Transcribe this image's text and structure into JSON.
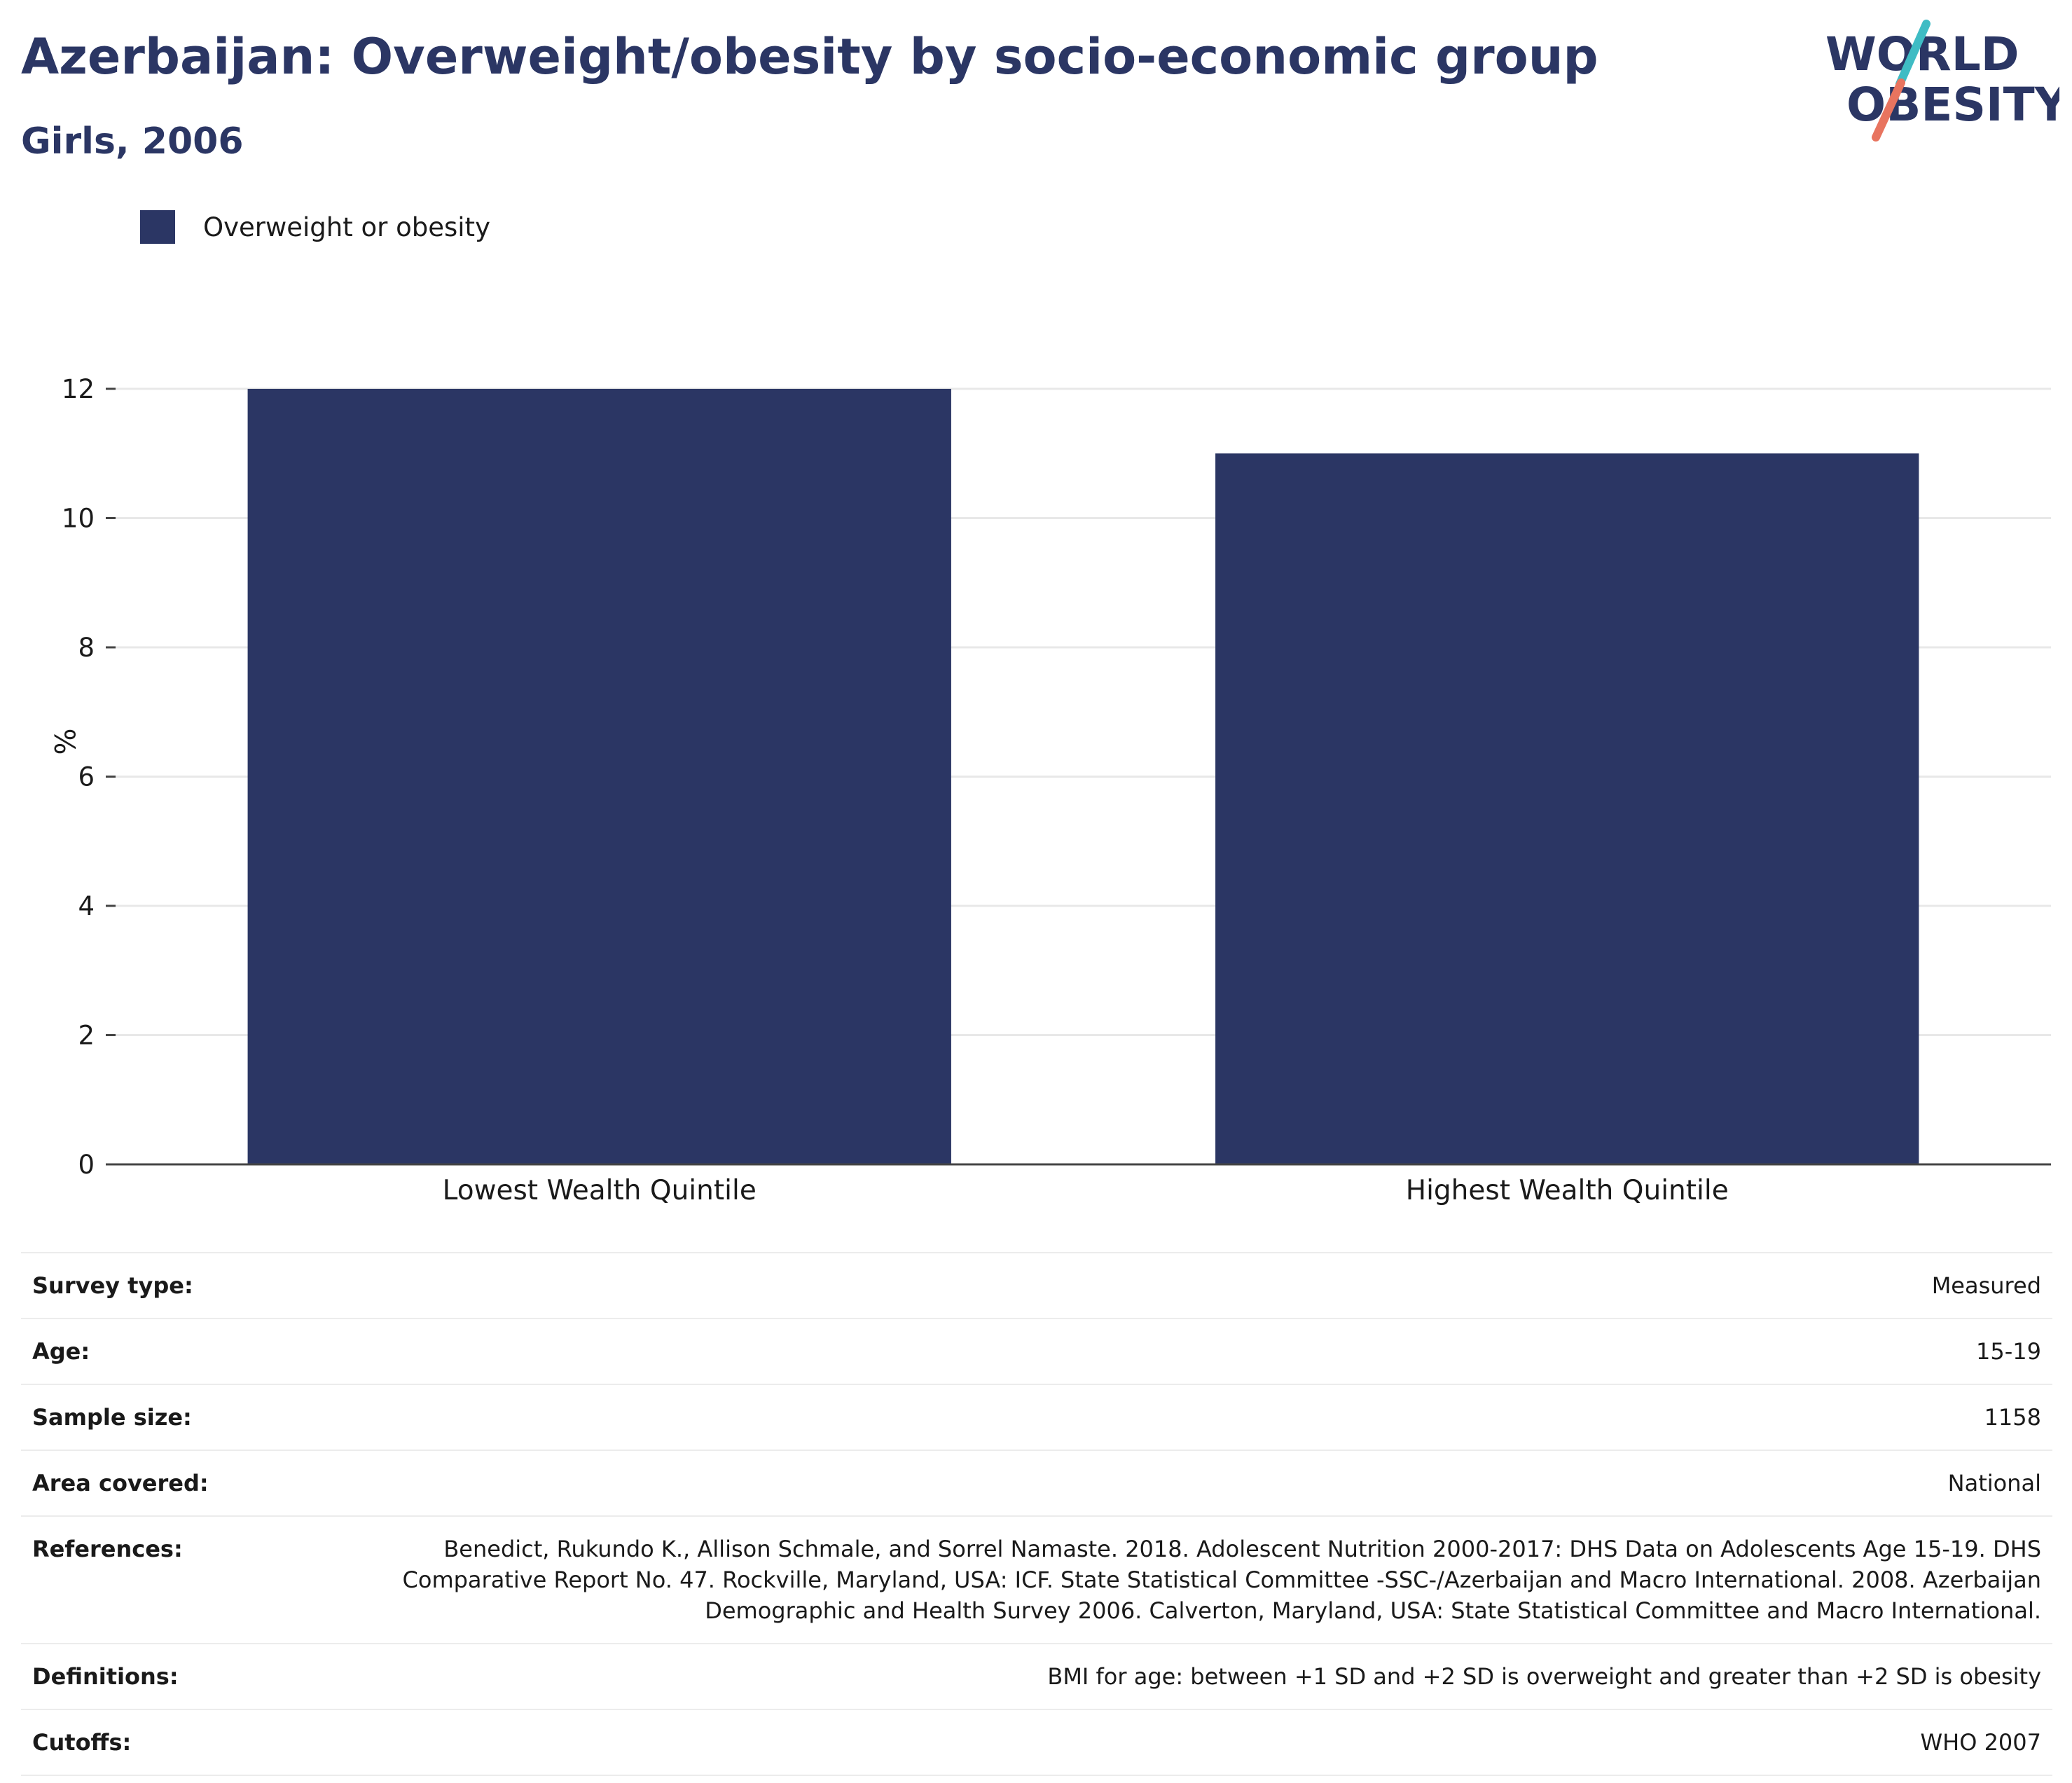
{
  "header": {
    "title": "Azerbaijan: Overweight/obesity by socio-economic group",
    "subtitle": "Girls, 2006"
  },
  "logo": {
    "line1": "WORLD",
    "line2": "OBESITY",
    "colors": {
      "text": "#2b3664",
      "accent_teal": "#3fbcc4",
      "accent_coral": "#e8745f"
    }
  },
  "colors": {
    "bar": "#2b3664",
    "grid": "#e8e8e8",
    "axis": "#444444",
    "text": "#2b3664"
  },
  "chart_data": {
    "type": "bar",
    "title": "Azerbaijan: Overweight/obesity by socio-economic group",
    "subtitle": "Girls, 2006",
    "categories": [
      "Lowest Wealth Quintile",
      "Highest Wealth Quintile"
    ],
    "series": [
      {
        "name": "Overweight or obesity",
        "values": [
          12,
          11
        ]
      }
    ],
    "xlabel": "",
    "ylabel": "%",
    "ylim": [
      0,
      12
    ],
    "yticks": [
      "0",
      "2",
      "4",
      "6",
      "8",
      "10",
      "12"
    ],
    "grid": true,
    "legend_position": "top-left"
  },
  "info": [
    {
      "label": "Survey type:",
      "value": "Measured"
    },
    {
      "label": "Age:",
      "value": "15-19"
    },
    {
      "label": "Sample size:",
      "value": "1158"
    },
    {
      "label": "Area covered:",
      "value": "National"
    },
    {
      "label": "References:",
      "value": "Benedict, Rukundo K., Allison Schmale, and Sorrel Namaste. 2018. Adolescent Nutrition 2000-2017: DHS Data on Adolescents Age 15-19. DHS Comparative Report No. 47. Rockville, Maryland, USA: ICF. State Statistical Committee -SSC-/Azerbaijan and Macro International. 2008. Azerbaijan Demographic and Health Survey 2006. Calverton, Maryland, USA: State Statistical Committee and Macro International."
    },
    {
      "label": "Definitions:",
      "value": "BMI for age: between +1 SD and +2 SD is overweight and greater than +2 SD is obesity"
    },
    {
      "label": "Cutoffs:",
      "value": "WHO 2007"
    }
  ]
}
